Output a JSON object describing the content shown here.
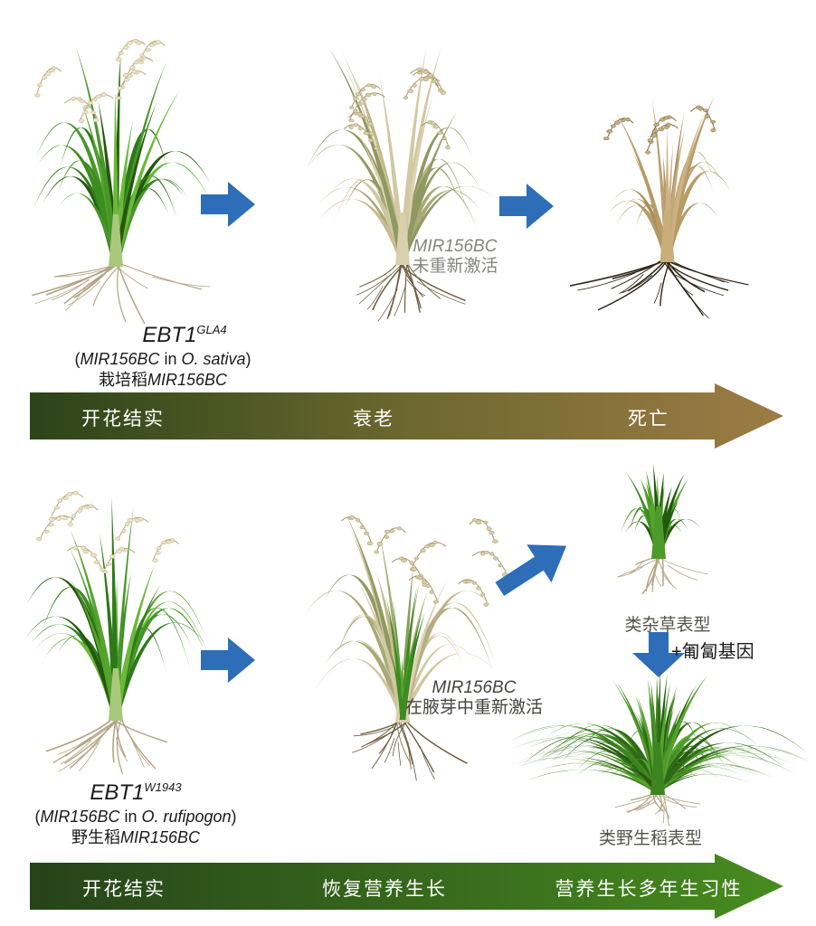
{
  "palette": {
    "blue_arrow": "#2e6db8",
    "top_timeline_gradient": [
      "#2b4418",
      "#6c682f",
      "#9d7c44"
    ],
    "bottom_timeline_gradient": [
      "#26431a",
      "#478c1f"
    ]
  },
  "top": {
    "note": {
      "gene": "MIR156BC",
      "status": "未重新激活"
    },
    "label": {
      "line1_gene": "EBT1",
      "line1_sup": "GLA4",
      "paren_open": "(",
      "line2_gene": "MIR156BC",
      "line2_connector": " in ",
      "line2_species": "O. sativa",
      "paren_close": ")",
      "line3_cn": "栽培稻",
      "line3_gene": "MIR156BC"
    },
    "timeline": {
      "stages": [
        "开花结实",
        "衰老",
        "死亡"
      ]
    }
  },
  "bottom": {
    "note": {
      "gene": "MIR156BC",
      "status": "在腋芽中重新激活"
    },
    "label": {
      "line1_gene": "EBT1",
      "line1_sup": "W1943",
      "paren_open": "(",
      "line2_gene": "MIR156BC",
      "line2_connector": " in ",
      "line2_species": "O. rufipogon",
      "paren_close": ")",
      "line3_cn": "野生稻",
      "line3_gene": "MIR156BC"
    },
    "weedy_label": "类杂草表型",
    "creeping_gene_label": "+匍匐基因",
    "wild_label": "类野生稻表型",
    "timeline": {
      "stages": [
        "开花结实",
        "恢复营养生长",
        "营养生长多年生习性"
      ]
    }
  }
}
